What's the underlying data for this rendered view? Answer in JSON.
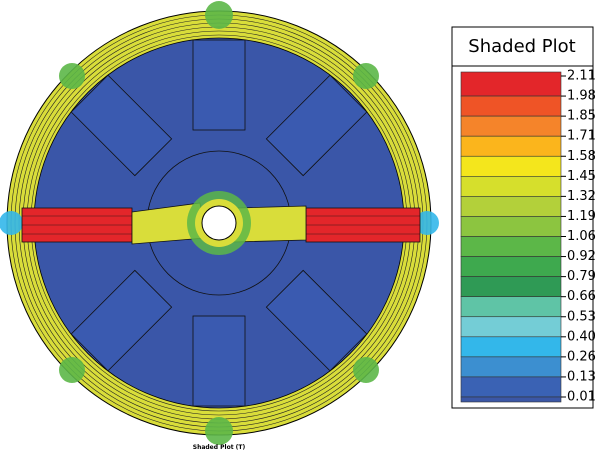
{
  "legend": {
    "title": "Shaded Plot",
    "labels": [
      "2.11",
      "1.98",
      "1.85",
      "1.71",
      "1.58",
      "1.45",
      "1.32",
      "1.19",
      "1.06",
      "0.92",
      "0.79",
      "0.66",
      "0.53",
      "0.40",
      "0.26",
      "0.13",
      "0.01"
    ],
    "colors": [
      "#e3262a",
      "#ef5426",
      "#f5842a",
      "#fbb51c",
      "#f4e61c",
      "#d6df2c",
      "#b3d03a",
      "#8cc540",
      "#5cb748",
      "#3ea94e",
      "#2f9a55",
      "#5fc4a6",
      "#74cdd6",
      "#33b7ea",
      "#3c8fd0",
      "#3a62b4"
    ],
    "bottom_color": "#3b57a6"
  },
  "caption": "Shaded Plot (T)"
}
